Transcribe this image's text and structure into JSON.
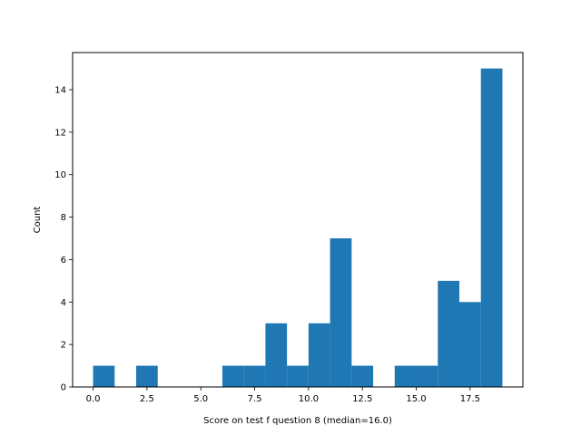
{
  "chart_data": {
    "type": "bar",
    "subtype": "histogram",
    "xlabel": "Score on test f question 8 (median=16.0)",
    "ylabel": "Count",
    "xlim": [
      -0.95,
      19.95
    ],
    "ylim": [
      0,
      15.75
    ],
    "x_ticks": [
      0.0,
      2.5,
      5.0,
      7.5,
      10.0,
      12.5,
      15.0,
      17.5
    ],
    "x_tick_labels": [
      "0.0",
      "2.5",
      "5.0",
      "7.5",
      "10.0",
      "12.5",
      "15.0",
      "17.5"
    ],
    "y_ticks": [
      0,
      2,
      4,
      6,
      8,
      10,
      12,
      14
    ],
    "y_tick_labels": [
      "0",
      "2",
      "4",
      "6",
      "8",
      "10",
      "12",
      "14"
    ],
    "bins": [
      {
        "x0": 0,
        "x1": 1,
        "count": 1
      },
      {
        "x0": 1,
        "x1": 2,
        "count": 0
      },
      {
        "x0": 2,
        "x1": 3,
        "count": 1
      },
      {
        "x0": 3,
        "x1": 4,
        "count": 0
      },
      {
        "x0": 4,
        "x1": 5,
        "count": 0
      },
      {
        "x0": 5,
        "x1": 6,
        "count": 0
      },
      {
        "x0": 6,
        "x1": 7,
        "count": 1
      },
      {
        "x0": 7,
        "x1": 8,
        "count": 1
      },
      {
        "x0": 8,
        "x1": 9,
        "count": 3
      },
      {
        "x0": 9,
        "x1": 10,
        "count": 1
      },
      {
        "x0": 10,
        "x1": 11,
        "count": 3
      },
      {
        "x0": 11,
        "x1": 12,
        "count": 7
      },
      {
        "x0": 12,
        "x1": 13,
        "count": 1
      },
      {
        "x0": 13,
        "x1": 14,
        "count": 0
      },
      {
        "x0": 14,
        "x1": 15,
        "count": 1
      },
      {
        "x0": 15,
        "x1": 16,
        "count": 1
      },
      {
        "x0": 16,
        "x1": 17,
        "count": 5
      },
      {
        "x0": 17,
        "x1": 18,
        "count": 4
      },
      {
        "x0": 18,
        "x1": 19,
        "count": 15
      }
    ],
    "bar_color": "#1f77b4",
    "grid": false,
    "legend": "none"
  }
}
